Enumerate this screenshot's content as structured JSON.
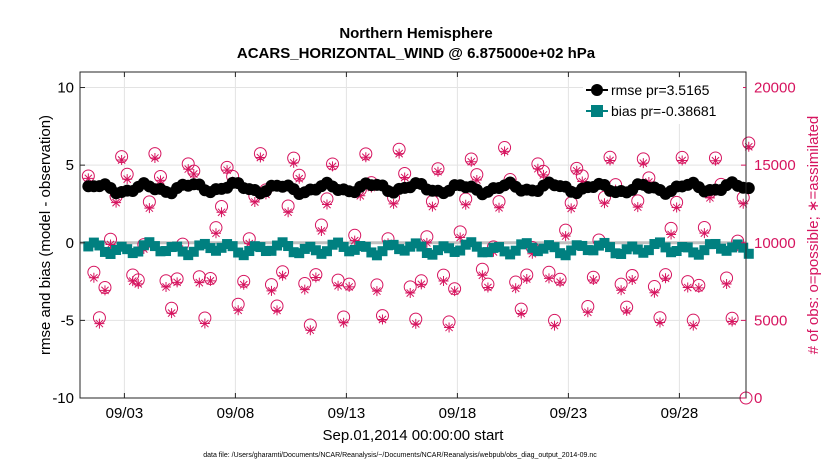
{
  "chart_data": {
    "type": "line",
    "title": "Northern Hemisphere",
    "subtitle": "ACARS_HORIZONTAL_WIND @ 6.875000e+02 hPa",
    "xlabel": "Sep.01,2014 00:00:00 start",
    "ylabel_left": "rmse and bias (model - observation)",
    "ylabel_right": "# of obs: o=possible; ∗=assimilated",
    "footnote": "data file: /Users/gharamti/Documents/NCAR/Reanalysis/~/Documents/NCAR/Reanalysis/webpub/obs_diag_output_2014-09.nc",
    "xlim": [
      1,
      31
    ],
    "ylim_left": [
      -10,
      11
    ],
    "ylim_right": [
      0,
      21000
    ],
    "x_ticks": [
      3,
      8,
      13,
      18,
      23,
      28
    ],
    "x_tick_labels": [
      "09/03",
      "09/08",
      "09/13",
      "09/18",
      "09/23",
      "09/28"
    ],
    "y_ticks_left": [
      -10,
      -5,
      0,
      5,
      10
    ],
    "y_tick_labels_left": [
      "-10",
      "-5",
      "0",
      "5",
      "10"
    ],
    "y_ticks_right": [
      0,
      5000,
      10000,
      15000,
      20000
    ],
    "y_tick_labels_right": [
      "0",
      "5000",
      "10000",
      "15000",
      "20000"
    ],
    "legend": [
      {
        "name": "rmse pr=3.5165",
        "color": "#000000",
        "marker": "circle"
      },
      {
        "name": "bias pr=-0.38681",
        "color": "#008080",
        "marker": "square"
      }
    ],
    "legend_position": "top-right",
    "zero_line_value": 0,
    "colors": {
      "rmse": "#000000",
      "bias": "#008080",
      "obs": "#d6145f",
      "zero": "#c0c0c0"
    },
    "obs_cycle": {
      "obs_possible": [
        14000,
        7400,
        5100,
        7400,
        10300,
        12600,
        15400
      ],
      "obs_assimilated": [
        13800,
        7000,
        4900,
        7200,
        10000,
        12300,
        15100
      ]
    },
    "obs_extra": {
      "last_possible": 0
    },
    "rmse_mean": 3.5165,
    "bias_mean": -0.38681
  }
}
